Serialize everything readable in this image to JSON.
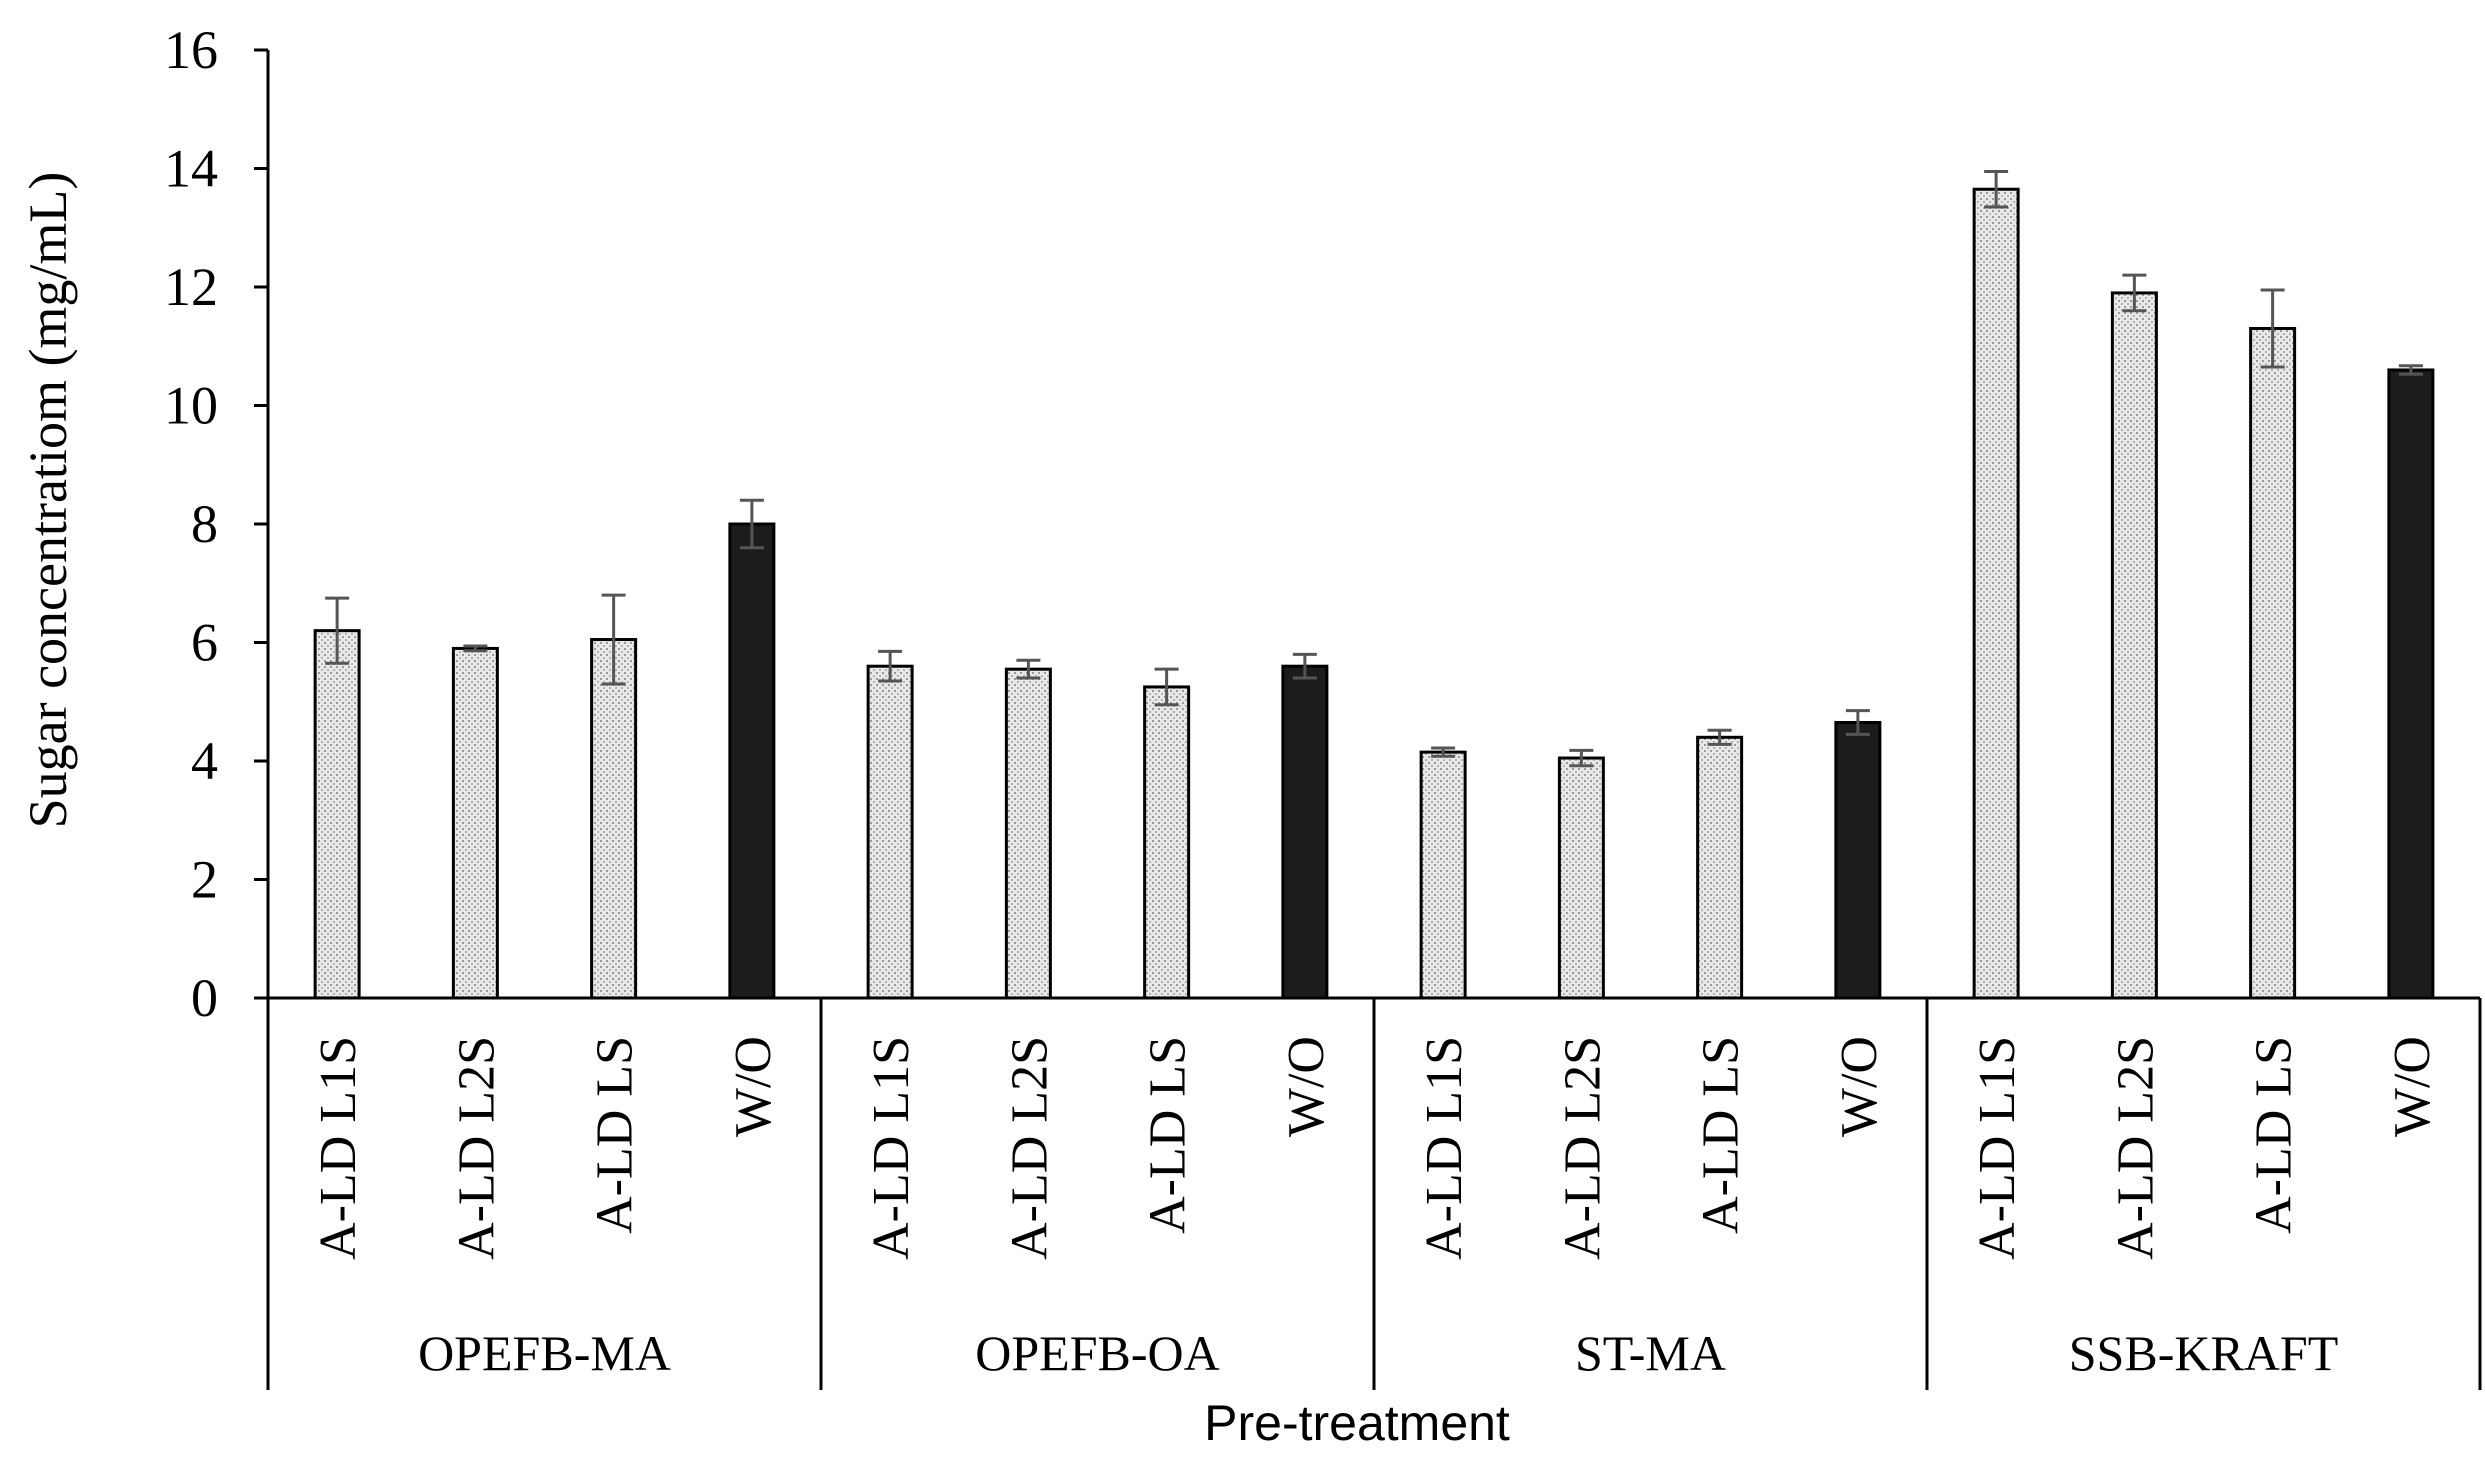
{
  "chart_data": {
    "type": "bar",
    "ylabel": "Sugar concentratiom (mg/mL)",
    "xlabel": "Pre-treatment",
    "ylim": [
      0,
      16
    ],
    "yticks": [
      0,
      2,
      4,
      6,
      8,
      10,
      12,
      14,
      16
    ],
    "legend": "none",
    "grid": false,
    "colors": {
      "treated": "#e0e0e0",
      "untreated": "#1c1c1c",
      "error_bar": "#555555"
    },
    "groups": [
      {
        "name": "OPEFB-MA",
        "bars": [
          {
            "label": "A-LD L1S",
            "value": 6.2,
            "error": 0.55,
            "kind": "treated"
          },
          {
            "label": "A-LD L2S",
            "value": 5.9,
            "error": 0.04,
            "kind": "treated"
          },
          {
            "label": "A-LD LS",
            "value": 6.05,
            "error": 0.75,
            "kind": "treated"
          },
          {
            "label": "W/O",
            "value": 8.0,
            "error": 0.4,
            "kind": "untreated"
          }
        ]
      },
      {
        "name": "OPEFB-OA",
        "bars": [
          {
            "label": "A-LD L1S",
            "value": 5.6,
            "error": 0.25,
            "kind": "treated"
          },
          {
            "label": "A-LD L2S",
            "value": 5.55,
            "error": 0.15,
            "kind": "treated"
          },
          {
            "label": "A-LD LS",
            "value": 5.25,
            "error": 0.3,
            "kind": "treated"
          },
          {
            "label": "W/O",
            "value": 5.6,
            "error": 0.2,
            "kind": "untreated"
          }
        ]
      },
      {
        "name": "ST-MA",
        "bars": [
          {
            "label": "A-LD L1S",
            "value": 4.15,
            "error": 0.07,
            "kind": "treated"
          },
          {
            "label": "A-LD L2S",
            "value": 4.05,
            "error": 0.13,
            "kind": "treated"
          },
          {
            "label": "A-LD LS",
            "value": 4.4,
            "error": 0.12,
            "kind": "treated"
          },
          {
            "label": "W/O",
            "value": 4.65,
            "error": 0.2,
            "kind": "untreated"
          }
        ]
      },
      {
        "name": "SSB-KRAFT",
        "bars": [
          {
            "label": "A-LD L1S",
            "value": 13.65,
            "error": 0.3,
            "kind": "treated"
          },
          {
            "label": "A-LD L2S",
            "value": 11.9,
            "error": 0.3,
            "kind": "treated"
          },
          {
            "label": "A-LD LS",
            "value": 11.3,
            "error": 0.65,
            "kind": "treated"
          },
          {
            "label": "W/O",
            "value": 10.6,
            "error": 0.07,
            "kind": "untreated"
          }
        ]
      }
    ]
  }
}
